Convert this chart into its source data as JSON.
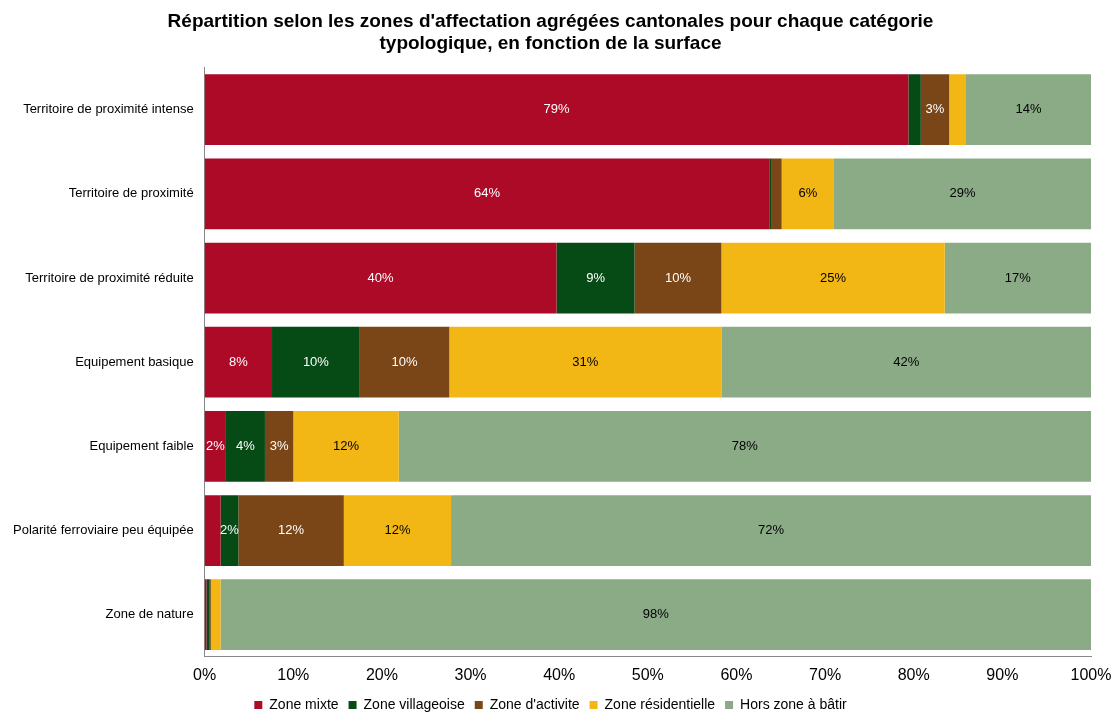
{
  "chart_data": {
    "type": "bar",
    "orientation": "horizontal",
    "stacked": true,
    "title": "Répartition selon les zones d'affectation agrégées cantonales pour chaque catégorie typologique, en fonction de la surface",
    "categories": [
      "Territoire de proximité intense",
      "Territoire de proximité",
      "Territoire de proximité réduite",
      "Equipement basique",
      "Equipement faible",
      "Polarité ferroviaire peu équipée",
      "Zone de nature"
    ],
    "series": [
      {
        "name": "Zone mixte",
        "color": "#ad0a28",
        "values": [
          79.4,
          63.7,
          39.7,
          7.6,
          2.4,
          1.8,
          0.2
        ],
        "value_labels": [
          "79%",
          "64%",
          "40%",
          "8%",
          "2%",
          null,
          null
        ]
      },
      {
        "name": "Zone villageoise",
        "color": "#064a15",
        "values": [
          1.4,
          0.2,
          8.8,
          9.9,
          4.4,
          2.0,
          0.3
        ],
        "value_labels": [
          null,
          null,
          "9%",
          "10%",
          "4%",
          "2%",
          null
        ]
      },
      {
        "name": "Zone d'activite",
        "color": "#7a4618",
        "values": [
          3.2,
          1.2,
          9.8,
          10.1,
          3.2,
          11.9,
          0.2
        ],
        "value_labels": [
          "3%",
          null,
          "10%",
          "10%",
          "3%",
          "12%",
          null
        ]
      },
      {
        "name": "Zone résidentielle",
        "color": "#f2b714",
        "values": [
          1.9,
          5.9,
          25.2,
          30.7,
          11.9,
          12.1,
          1.1
        ],
        "value_labels": [
          null,
          "6%",
          "25%",
          "31%",
          "12%",
          "12%",
          null
        ]
      },
      {
        "name": "Hors zone à bâtir",
        "color": "#8aab86",
        "values": [
          14.1,
          29.0,
          16.5,
          41.7,
          78.1,
          72.2,
          98.2
        ],
        "value_labels": [
          "14%",
          "29%",
          "17%",
          "42%",
          "78%",
          "72%",
          "98%"
        ]
      }
    ],
    "xlim": [
      0,
      100
    ],
    "xticks": [
      {
        "value": 0,
        "label": "0%"
      },
      {
        "value": 10,
        "label": "10%"
      },
      {
        "value": 20,
        "label": "20%"
      },
      {
        "value": 30,
        "label": "30%"
      },
      {
        "value": 40,
        "label": "40%"
      },
      {
        "value": 50,
        "label": "50%"
      },
      {
        "value": 60,
        "label": "60%"
      },
      {
        "value": 70,
        "label": "70%"
      },
      {
        "value": 80,
        "label": "80%"
      },
      {
        "value": 90,
        "label": "90%"
      },
      {
        "value": 100,
        "label": "100%"
      }
    ],
    "grid": false,
    "legend": "bottom"
  }
}
